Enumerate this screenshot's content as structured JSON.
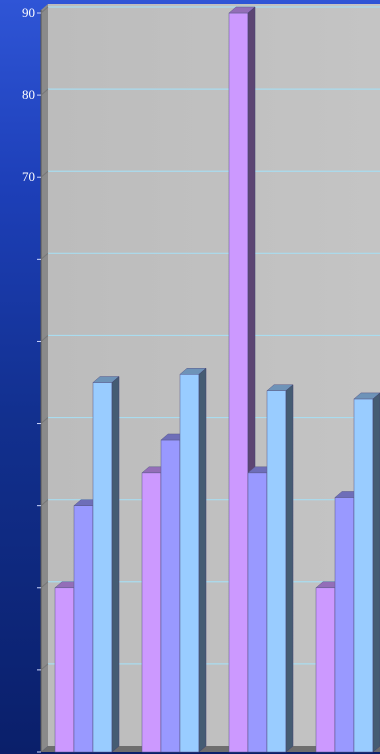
{
  "chart_data": {
    "type": "bar",
    "title": "",
    "xlabel": "",
    "ylabel": "",
    "ylim": [
      0,
      90
    ],
    "y_ticks": [
      0,
      10,
      20,
      30,
      40,
      50,
      60,
      70,
      80,
      90
    ],
    "y_tick_labels": [
      "",
      "",
      "",
      "",
      "",
      "",
      "",
      "70",
      "80",
      "90"
    ],
    "grid": true,
    "style": "3d-clustered",
    "categories": [
      "",
      "",
      "",
      ""
    ],
    "series": [
      {
        "values": [
          20,
          34,
          90,
          20
        ],
        "color": "#cc99ff"
      },
      {
        "values": [
          30,
          38,
          34,
          31
        ],
        "color": "#9999ff"
      },
      {
        "values": [
          45,
          46,
          44,
          43
        ],
        "color": "#99ccff"
      }
    ]
  }
}
